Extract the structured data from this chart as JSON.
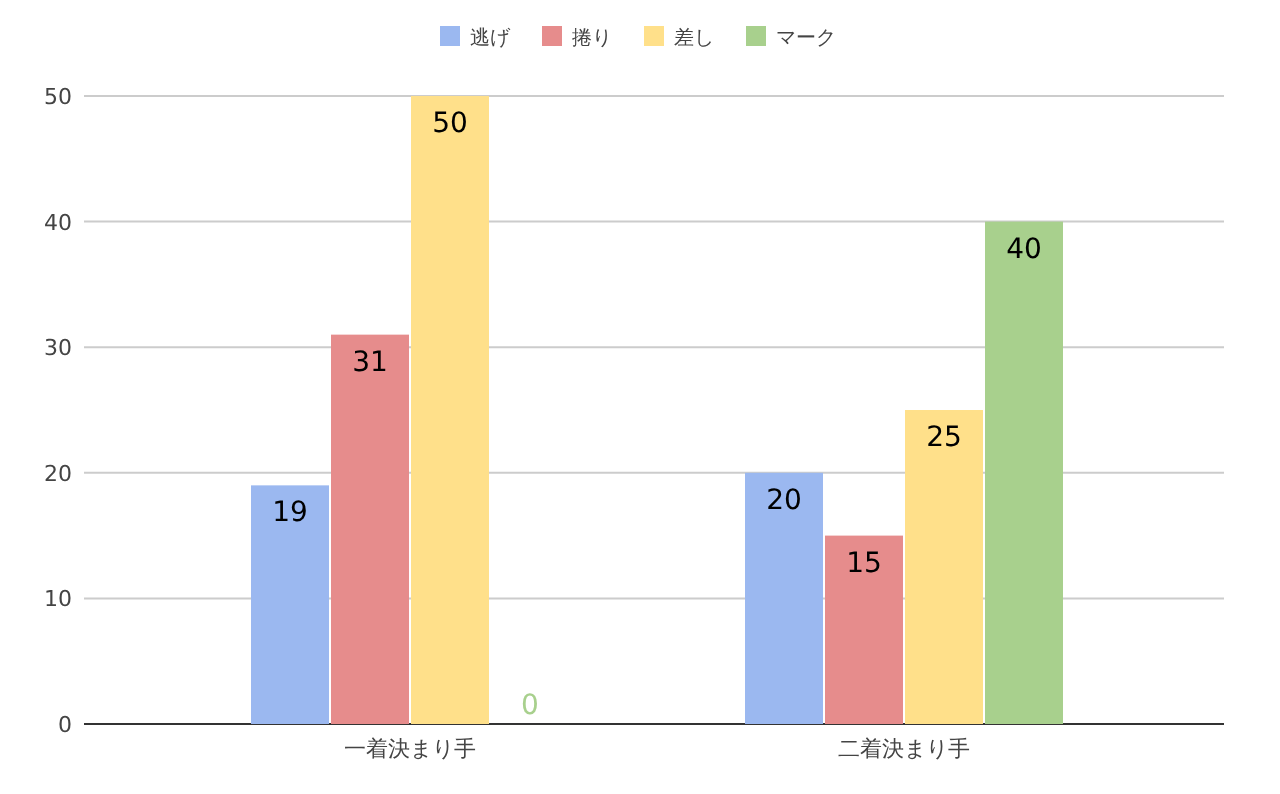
{
  "chart_data": {
    "type": "bar",
    "categories": [
      "一着決まり手",
      "二着決まり手"
    ],
    "series": [
      {
        "name": "逃げ",
        "color": "#9bb8f0",
        "values": [
          19,
          20
        ]
      },
      {
        "name": "捲り",
        "color": "#e68c8c",
        "values": [
          31,
          15
        ]
      },
      {
        "name": "差し",
        "color": "#ffe08a",
        "values": [
          50,
          25
        ]
      },
      {
        "name": "マーク",
        "color": "#a8d08d",
        "values": [
          0,
          40
        ]
      }
    ],
    "ylim": [
      0,
      50
    ],
    "yticks": [
      0,
      10,
      20,
      30,
      40,
      50
    ],
    "grid": "y",
    "legend": "top",
    "data_labels": true
  }
}
